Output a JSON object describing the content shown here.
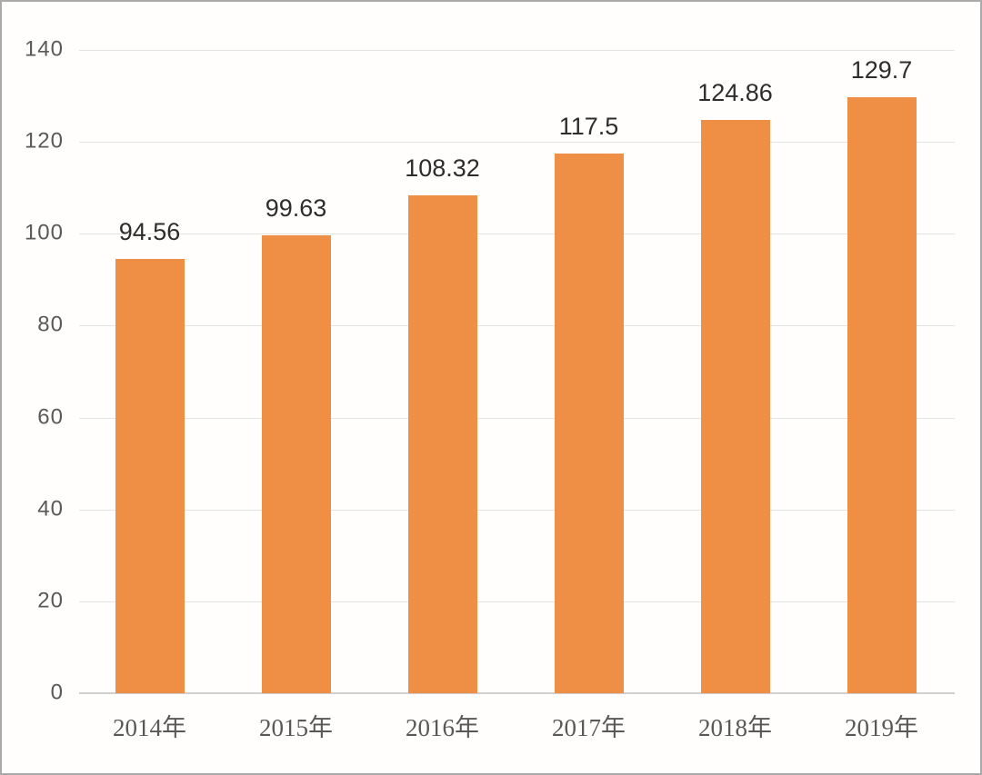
{
  "page": {
    "background_color": "#fffefd",
    "border_color": "#aaaaaa"
  },
  "chart_data": {
    "type": "bar",
    "title": "",
    "xlabel": "",
    "ylabel": "",
    "categories": [
      "2014年",
      "2015年",
      "2016年",
      "2017年",
      "2018年",
      "2019年"
    ],
    "values": [
      94.56,
      99.63,
      108.32,
      117.5,
      124.86,
      129.7
    ],
    "value_labels": [
      "94.56",
      "99.63",
      "108.32",
      "117.5",
      "124.86",
      "129.7"
    ],
    "ylim": [
      0,
      140
    ],
    "yticks": [
      0,
      20,
      40,
      60,
      80,
      100,
      120,
      140
    ],
    "grid": true,
    "legend": false,
    "bar_color": "#EF8F46",
    "gridline_color": "#E3E3E3",
    "axis_line_color": "#CFCFCF",
    "value_label_color": "#2D2D2D",
    "y_tick_color": "#595959",
    "x_tick_color": "#585858"
  }
}
